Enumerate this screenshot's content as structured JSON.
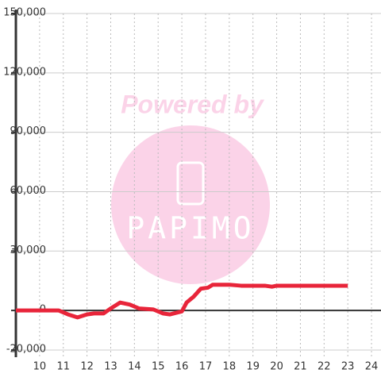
{
  "chart_data": {
    "type": "line",
    "watermark": "Powered by",
    "watermark_brand": "PAPIMO",
    "x": [
      9,
      10,
      10.8,
      11.2,
      11.6,
      12,
      12.3,
      12.7,
      13,
      13.4,
      13.8,
      14.2,
      14.8,
      15.2,
      15.5,
      16,
      16.2,
      16.5,
      16.8,
      17.1,
      17.3,
      18,
      18.5,
      19.5,
      19.8,
      20,
      23
    ],
    "series": [
      {
        "name": "value",
        "color": "#e8253a",
        "values": [
          0,
          0,
          0,
          -2000,
          -3500,
          -2000,
          -1500,
          -1500,
          1000,
          4000,
          3000,
          1000,
          500,
          -1500,
          -2000,
          -500,
          4000,
          7000,
          11000,
          11500,
          13000,
          13000,
          12500,
          12500,
          12000,
          12500,
          12500
        ]
      }
    ],
    "xlim": [
      9,
      24.4
    ],
    "xticks": [
      10,
      11,
      12,
      13,
      14,
      15,
      16,
      17,
      18,
      19,
      20,
      21,
      22,
      23,
      24
    ],
    "ylim": [
      -20000,
      150000
    ],
    "yticks": [
      {
        "value": -20000,
        "label": "-20,000"
      },
      0,
      {
        "value": 30000,
        "label": "30,000"
      },
      {
        "value": 60000,
        "label": "60,000"
      },
      {
        "value": 90000,
        "label": "90,000"
      },
      {
        "value": 120000,
        "label": "120,000"
      },
      {
        "value": 150000,
        "label": "150,000"
      }
    ],
    "grid": true
  }
}
